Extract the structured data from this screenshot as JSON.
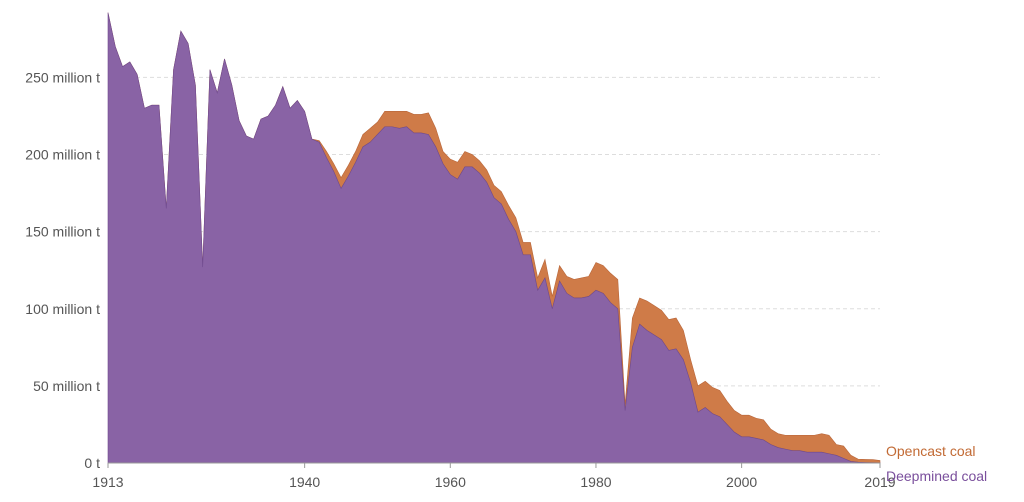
{
  "chart_data": {
    "type": "area",
    "stacked": true,
    "title": "",
    "xlabel": "",
    "ylabel": "",
    "ylim": [
      0,
      295
    ],
    "xlim": [
      1913,
      2019
    ],
    "y_unit": "million t",
    "grid": "horizontal dashed",
    "legend_placement": "right, at series end",
    "y_ticks": [
      {
        "value": 0,
        "label": "0 t"
      },
      {
        "value": 50,
        "label": "50 million t"
      },
      {
        "value": 100,
        "label": "100 million t"
      },
      {
        "value": 150,
        "label": "150 million t"
      },
      {
        "value": 200,
        "label": "200 million t"
      },
      {
        "value": 250,
        "label": "250 million t"
      }
    ],
    "x_ticks": [
      {
        "value": 1913,
        "label": "1913"
      },
      {
        "value": 1940,
        "label": "1940"
      },
      {
        "value": 1960,
        "label": "1960"
      },
      {
        "value": 1980,
        "label": "1980"
      },
      {
        "value": 2000,
        "label": "2000"
      },
      {
        "value": 2019,
        "label": "2019"
      }
    ],
    "x": [
      1913,
      1914,
      1915,
      1916,
      1917,
      1918,
      1919,
      1920,
      1921,
      1922,
      1923,
      1924,
      1925,
      1926,
      1927,
      1928,
      1929,
      1930,
      1931,
      1932,
      1933,
      1934,
      1935,
      1936,
      1937,
      1938,
      1939,
      1940,
      1941,
      1942,
      1943,
      1944,
      1945,
      1946,
      1947,
      1948,
      1949,
      1950,
      1951,
      1952,
      1953,
      1954,
      1955,
      1956,
      1957,
      1958,
      1959,
      1960,
      1961,
      1962,
      1963,
      1964,
      1965,
      1966,
      1967,
      1968,
      1969,
      1970,
      1971,
      1972,
      1973,
      1974,
      1975,
      1976,
      1977,
      1978,
      1979,
      1980,
      1981,
      1982,
      1983,
      1984,
      1985,
      1986,
      1987,
      1988,
      1989,
      1990,
      1991,
      1992,
      1993,
      1994,
      1995,
      1996,
      1997,
      1998,
      1999,
      2000,
      2001,
      2002,
      2003,
      2004,
      2005,
      2006,
      2007,
      2008,
      2009,
      2010,
      2011,
      2012,
      2013,
      2014,
      2015,
      2016,
      2017,
      2018,
      2019
    ],
    "series": [
      {
        "name": "Deepmined coal",
        "color": "#8963a5",
        "values": [
          292,
          270,
          257,
          260,
          252,
          230,
          232,
          232,
          165,
          255,
          280,
          272,
          245,
          127,
          255,
          240,
          262,
          245,
          222,
          212,
          210,
          223,
          225,
          232,
          244,
          230,
          235,
          228,
          210,
          208,
          198,
          189,
          178,
          186,
          195,
          205,
          208,
          213,
          218,
          218,
          217,
          218,
          214,
          214,
          213,
          205,
          194,
          187,
          184,
          192,
          192,
          188,
          182,
          172,
          168,
          158,
          150,
          135,
          135,
          112,
          120,
          100,
          118,
          110,
          107,
          107,
          108,
          112,
          110,
          104,
          100,
          34,
          75,
          90,
          86,
          83,
          80,
          73,
          74,
          67,
          52,
          33,
          36,
          32,
          30,
          25,
          20,
          17,
          17,
          16,
          15,
          12,
          10,
          9,
          8,
          8,
          7,
          7,
          7,
          6,
          5,
          3,
          1,
          0.5,
          0.3,
          0.2,
          0.1
        ]
      },
      {
        "name": "Opencast coal",
        "color": "#cf7b48",
        "values": [
          0,
          0,
          0,
          0,
          0,
          0,
          0,
          0,
          0,
          0,
          0,
          0,
          0,
          0,
          0,
          0,
          0,
          0,
          0,
          0,
          0,
          0,
          0,
          0,
          0,
          0,
          0,
          0,
          0,
          1,
          4,
          5,
          7,
          7,
          7,
          8,
          9,
          8,
          10,
          10,
          11,
          10,
          12,
          12,
          14,
          12,
          8,
          10,
          11,
          10,
          8,
          8,
          8,
          8,
          8,
          9,
          9,
          8,
          8,
          8,
          12,
          8,
          10,
          11,
          12,
          13,
          13,
          18,
          18,
          19,
          19,
          4,
          19,
          17,
          19,
          19,
          19,
          20,
          20,
          19,
          15,
          17,
          17,
          17,
          17,
          15,
          14,
          14,
          14,
          13,
          13,
          10,
          9,
          9,
          10,
          10,
          11,
          11,
          12,
          12,
          7,
          8,
          4,
          2,
          2,
          2,
          1.5
        ]
      }
    ]
  }
}
